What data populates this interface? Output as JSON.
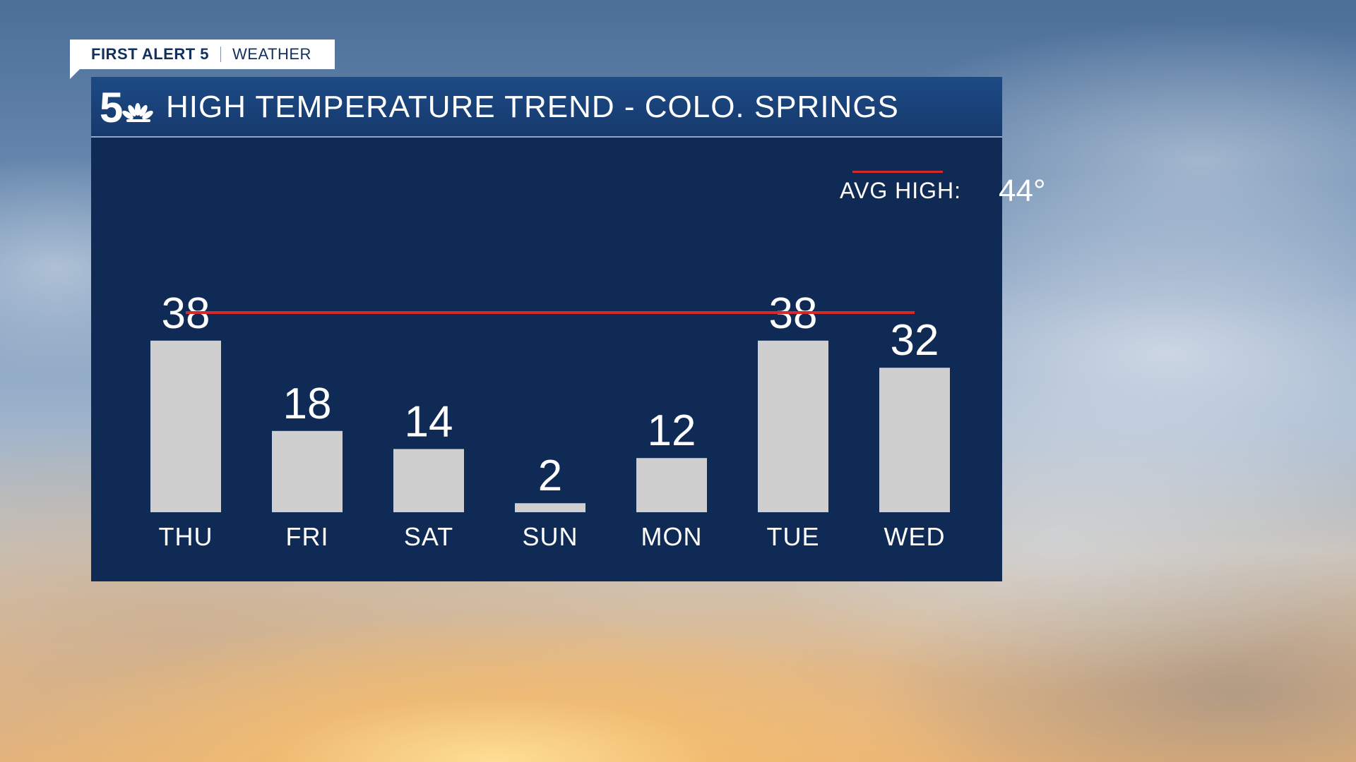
{
  "branding": {
    "tag_brand": "FIRST ALERT 5",
    "tag_sub": "WEATHER",
    "logo_icon": "nbc5-peacock-logo-icon"
  },
  "panel": {
    "title": "HIGH TEMPERATURE TREND - COLO. SPRINGS"
  },
  "legend": {
    "label": "AVG HIGH:",
    "value": "44°"
  },
  "colors": {
    "panel_bg": "#0f2a55",
    "header_bg": "#1d4a85",
    "bar": "#cfcfcf",
    "avg_line": "#d42a2a",
    "text": "#ffffff"
  },
  "chart_data": {
    "type": "bar",
    "title": "HIGH TEMPERATURE TREND - COLO. SPRINGS",
    "categories": [
      "THU",
      "FRI",
      "SAT",
      "SUN",
      "MON",
      "TUE",
      "WED"
    ],
    "values": [
      38,
      18,
      14,
      2,
      12,
      38,
      32
    ],
    "value_labels": [
      "38",
      "18",
      "14",
      "2",
      "12",
      "38",
      "32"
    ],
    "avg_high": 44,
    "legend": "top-right",
    "grid": false
  }
}
